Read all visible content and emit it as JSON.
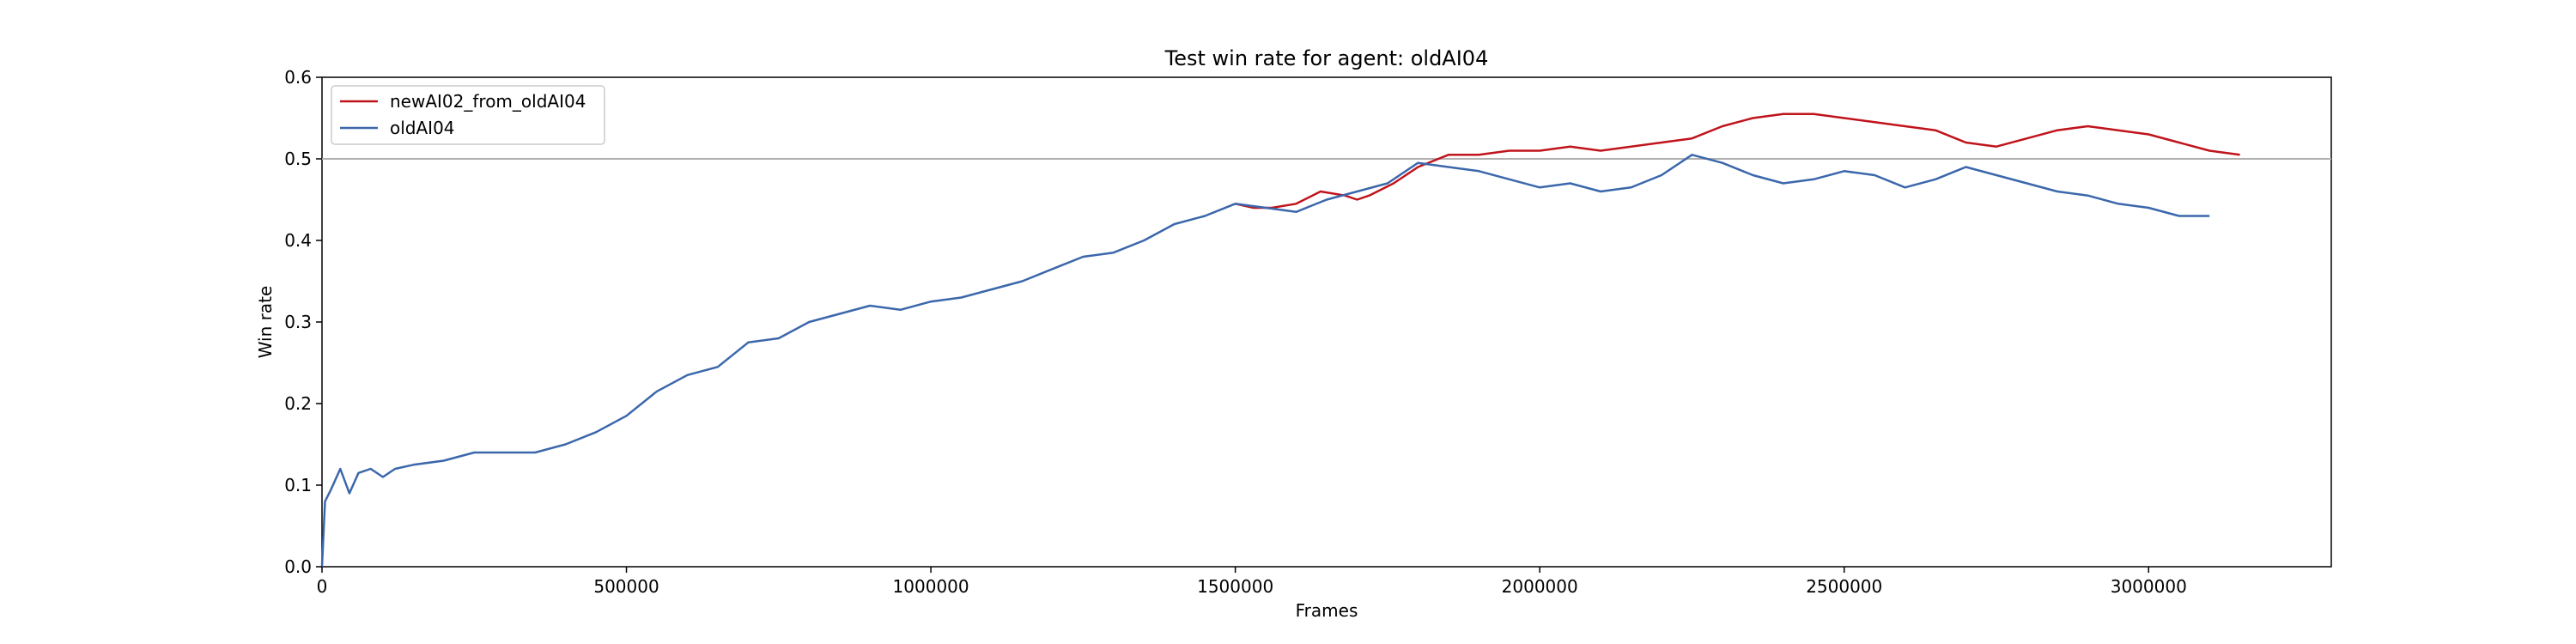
{
  "chart_data": {
    "type": "line",
    "title": "Test win rate for agent: oldAI04",
    "xlabel": "Frames",
    "ylabel": "Win rate",
    "xlim": [
      0,
      3300000
    ],
    "ylim": [
      0.0,
      0.6
    ],
    "x_ticks": [
      0,
      500000,
      1000000,
      1500000,
      2000000,
      2500000,
      3000000
    ],
    "y_ticks": [
      0.0,
      0.1,
      0.2,
      0.3,
      0.4,
      0.5,
      0.6
    ],
    "x_tick_labels": [
      "0",
      "500000",
      "1000000",
      "1500000",
      "2000000",
      "2500000",
      "3000000"
    ],
    "y_tick_labels": [
      "0.0",
      "0.1",
      "0.2",
      "0.3",
      "0.4",
      "0.5",
      "0.6"
    ],
    "grid": false,
    "legend_position": "upper-left",
    "reference_line": {
      "y": 0.5,
      "color": "#b0b0b0"
    },
    "series": [
      {
        "name": "newAI02_from_oldAI04",
        "color": "#c0141c",
        "x": [
          1500000,
          1530000,
          1560000,
          1600000,
          1640000,
          1680000,
          1700000,
          1720000,
          1760000,
          1800000,
          1850000,
          1900000,
          1950000,
          2000000,
          2050000,
          2100000,
          2150000,
          2200000,
          2250000,
          2300000,
          2350000,
          2400000,
          2450000,
          2500000,
          2550000,
          2600000,
          2650000,
          2700000,
          2750000,
          2800000,
          2850000,
          2900000,
          2950000,
          3000000,
          3050000,
          3100000,
          3150000
        ],
        "y": [
          0.445,
          0.44,
          0.44,
          0.445,
          0.46,
          0.455,
          0.45,
          0.455,
          0.47,
          0.49,
          0.505,
          0.505,
          0.51,
          0.51,
          0.515,
          0.51,
          0.515,
          0.52,
          0.525,
          0.54,
          0.55,
          0.555,
          0.555,
          0.55,
          0.545,
          0.54,
          0.535,
          0.52,
          0.515,
          0.525,
          0.535,
          0.54,
          0.535,
          0.53,
          0.52,
          0.51,
          0.505
        ]
      },
      {
        "name": "oldAI04",
        "color": "#3b67ab",
        "x": [
          0,
          5000,
          15000,
          30000,
          45000,
          60000,
          80000,
          100000,
          120000,
          150000,
          200000,
          250000,
          300000,
          350000,
          400000,
          450000,
          500000,
          550000,
          600000,
          650000,
          700000,
          750000,
          800000,
          850000,
          900000,
          950000,
          1000000,
          1050000,
          1100000,
          1150000,
          1200000,
          1250000,
          1300000,
          1350000,
          1400000,
          1450000,
          1500000,
          1550000,
          1600000,
          1650000,
          1700000,
          1750000,
          1800000,
          1850000,
          1900000,
          1950000,
          2000000,
          2050000,
          2100000,
          2150000,
          2200000,
          2250000,
          2300000,
          2350000,
          2400000,
          2450000,
          2500000,
          2550000,
          2600000,
          2650000,
          2700000,
          2750000,
          2800000,
          2850000,
          2900000,
          2950000,
          3000000,
          3050000,
          3100000
        ],
        "y": [
          0.0,
          0.08,
          0.095,
          0.12,
          0.09,
          0.115,
          0.12,
          0.11,
          0.12,
          0.125,
          0.13,
          0.14,
          0.14,
          0.14,
          0.15,
          0.165,
          0.185,
          0.215,
          0.235,
          0.245,
          0.275,
          0.28,
          0.3,
          0.31,
          0.32,
          0.315,
          0.325,
          0.33,
          0.34,
          0.35,
          0.365,
          0.38,
          0.385,
          0.4,
          0.42,
          0.43,
          0.445,
          0.44,
          0.435,
          0.45,
          0.46,
          0.47,
          0.495,
          0.49,
          0.485,
          0.475,
          0.465,
          0.47,
          0.46,
          0.465,
          0.48,
          0.505,
          0.495,
          0.48,
          0.47,
          0.475,
          0.485,
          0.48,
          0.465,
          0.475,
          0.49,
          0.48,
          0.47,
          0.46,
          0.455,
          0.445,
          0.44,
          0.43,
          0.43
        ]
      }
    ]
  }
}
